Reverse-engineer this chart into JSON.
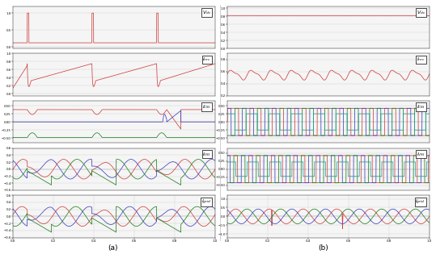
{
  "fig_width": 5.39,
  "fig_height": 3.15,
  "dpi": 100,
  "label_a": "(a)",
  "label_b": "(b)",
  "panel_labels_left": [
    "$V_{dc}$",
    "$I_{rec}$",
    "$I_{CSI}$",
    "$I_{VSI}$",
    "$I_{grid}$"
  ],
  "panel_labels_right": [
    "$V_{dc}$",
    "$I_{rec}$",
    "$I_{CSI}$",
    "$I_{VSI}$",
    "$I_{grid}$"
  ],
  "colors": {
    "red": "#d04040",
    "blue": "#4040c0",
    "green": "#208020",
    "cyan": "#20a0a0",
    "bg": "#ffffff",
    "grid": "#cccccc"
  }
}
